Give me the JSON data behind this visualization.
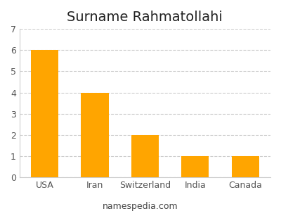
{
  "title": "Surname Rahmatollahi",
  "categories": [
    "USA",
    "Iran",
    "Switzerland",
    "India",
    "Canada"
  ],
  "values": [
    6,
    4,
    2,
    1,
    1
  ],
  "bar_color": "#FFA500",
  "ylim": [
    0,
    7
  ],
  "yticks": [
    0,
    1,
    2,
    3,
    4,
    5,
    6,
    7
  ],
  "grid_color": "#cccccc",
  "background_color": "#ffffff",
  "title_fontsize": 14,
  "tick_fontsize": 9,
  "footer_text": "namespedia.com",
  "footer_fontsize": 9,
  "bar_width": 0.55
}
